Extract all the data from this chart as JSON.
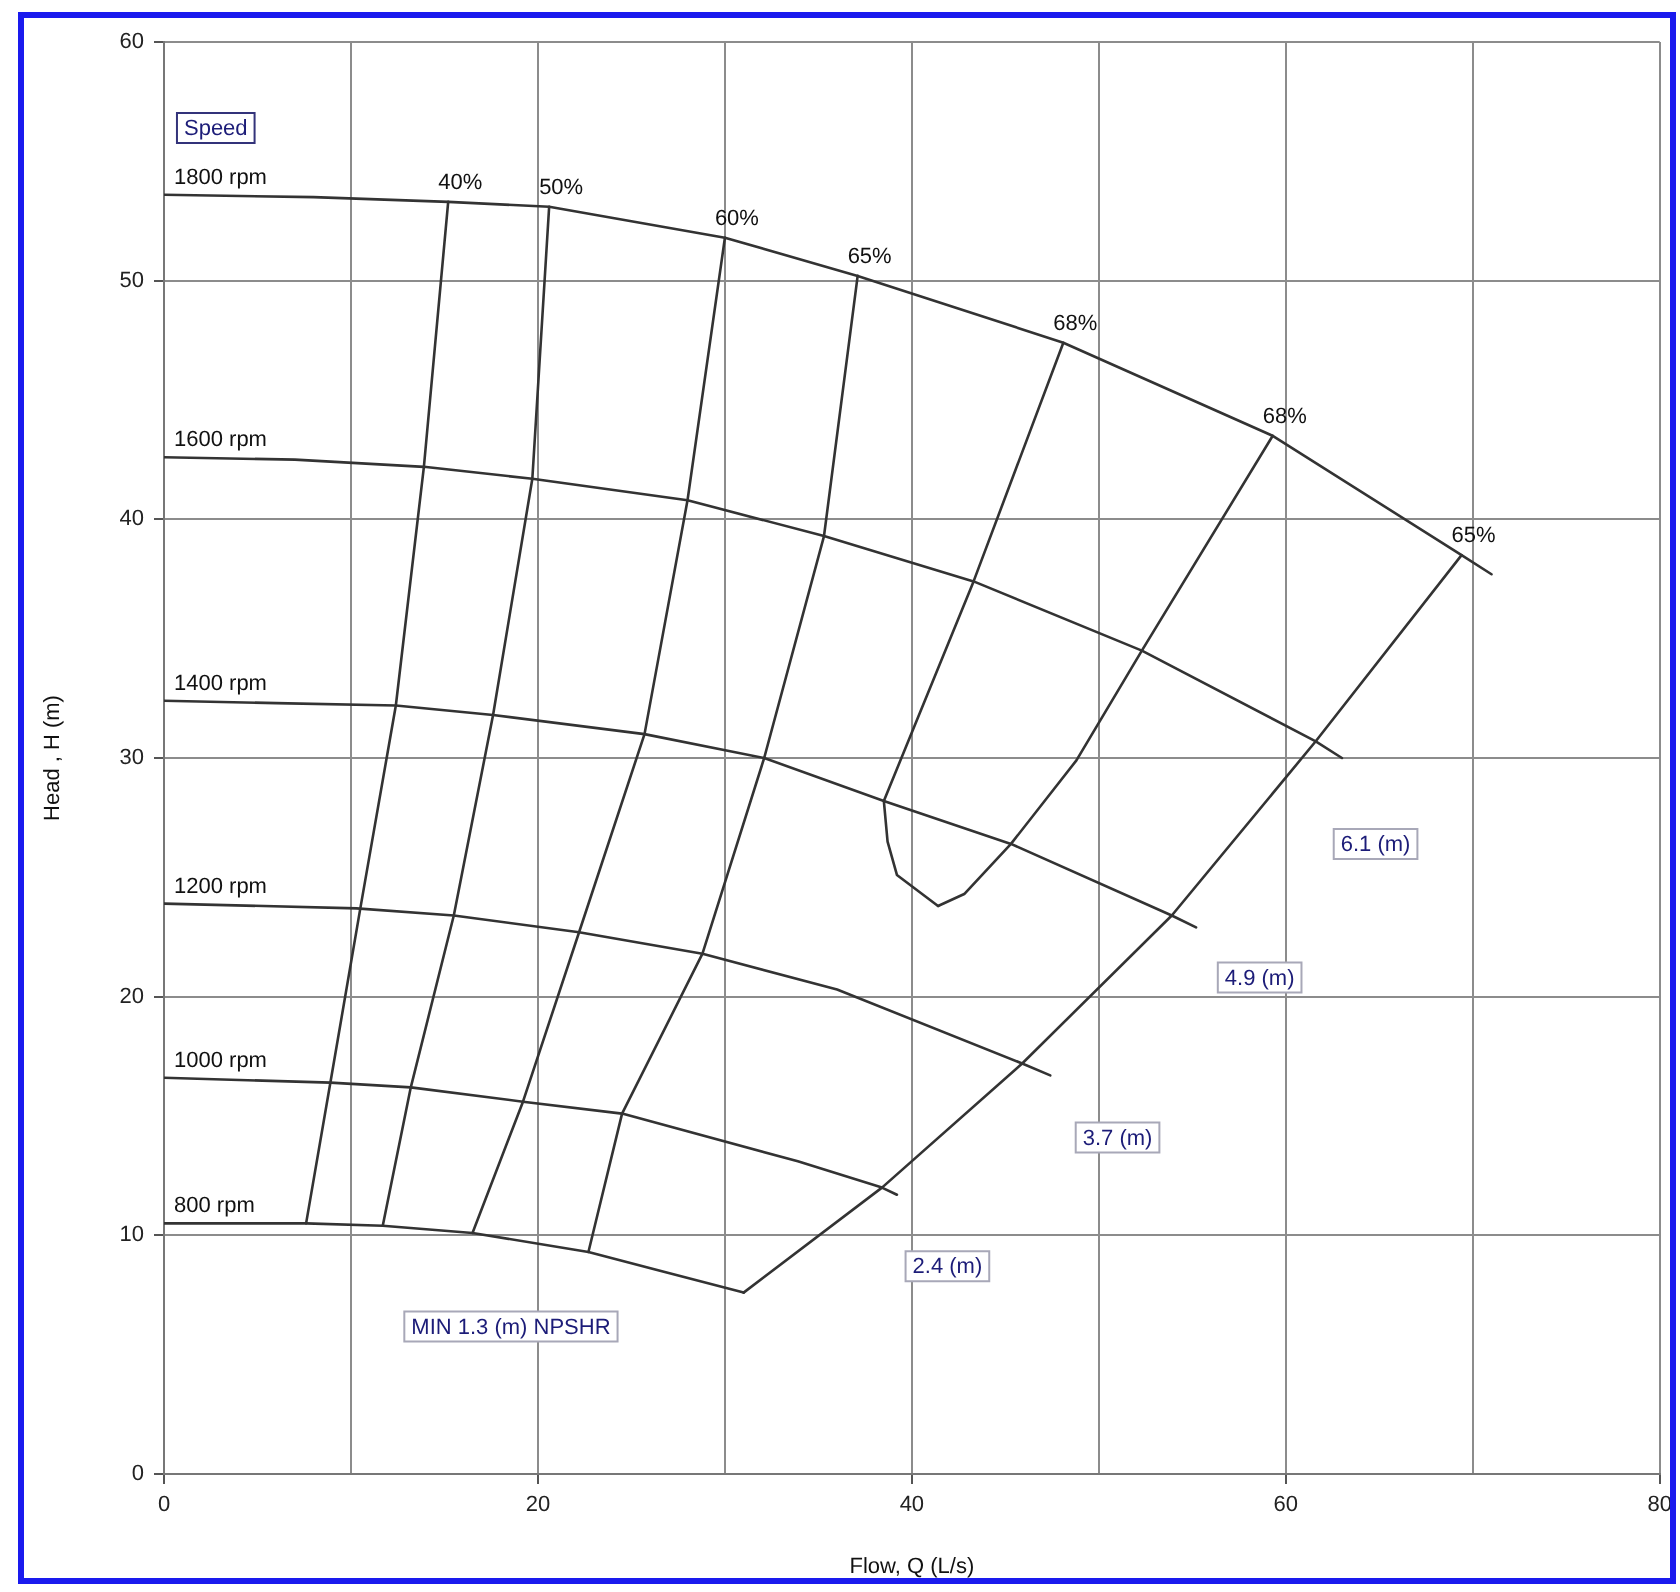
{
  "chart_data": {
    "type": "line",
    "xlabel": "Flow, Q (L/s)",
    "ylabel": "Head , H (m)",
    "xlim": [
      0,
      80
    ],
    "xticks": [
      0,
      {
        "value": 10,
        "label": null
      },
      20,
      {
        "value": 30,
        "label": null
      },
      40,
      {
        "value": 50,
        "label": null
      },
      60,
      {
        "value": 70,
        "label": null
      },
      80
    ],
    "ylim": [
      0,
      60
    ],
    "yticks": [
      0,
      10,
      20,
      30,
      40,
      50,
      60
    ],
    "grid": true,
    "legend": false,
    "marker": "none",
    "series": [
      {
        "name": "1800 rpm",
        "color": "#333333",
        "x": [
          0,
          8,
          15.2,
          20.6,
          30.0,
          37.1,
          48.1,
          59.3,
          69.4,
          71.0
        ],
        "values": [
          53.6,
          53.5,
          53.3,
          53.1,
          51.8,
          50.2,
          47.4,
          43.5,
          38.5,
          37.7
        ]
      },
      {
        "name": "1600 rpm",
        "color": "#333333",
        "x": [
          0,
          7,
          13.9,
          19.7,
          28.0,
          35.3,
          43.3,
          52.3,
          61.6,
          63.0
        ],
        "values": [
          42.6,
          42.5,
          42.2,
          41.7,
          40.8,
          39.3,
          37.4,
          34.5,
          30.7,
          30.0
        ]
      },
      {
        "name": "1400 rpm",
        "color": "#333333",
        "x": [
          0,
          6,
          12.4,
          17.6,
          25.7,
          32.1,
          38.5,
          45.3,
          53.9,
          55.2
        ],
        "values": [
          32.4,
          32.3,
          32.2,
          31.8,
          31.0,
          30.0,
          28.2,
          26.4,
          23.4,
          22.9
        ]
      },
      {
        "name": "1200 rpm",
        "color": "#333333",
        "x": [
          0,
          10.3,
          15.5,
          22.2,
          28.8,
          36.0,
          45.9,
          47.4
        ],
        "values": [
          23.9,
          23.7,
          23.4,
          22.7,
          21.8,
          20.3,
          17.2,
          16.7
        ]
      },
      {
        "name": "1000 rpm",
        "color": "#333333",
        "x": [
          0,
          8.9,
          13.2,
          19.2,
          24.5,
          33.9,
          38.4,
          39.2
        ],
        "values": [
          16.6,
          16.4,
          16.2,
          15.6,
          15.1,
          13.1,
          12.0,
          11.7
        ]
      },
      {
        "name": "800 rpm",
        "color": "#333333",
        "x": [
          0,
          7.6,
          11.7,
          16.5,
          22.7,
          31.0
        ],
        "values": [
          10.5,
          10.5,
          10.4,
          10.1,
          9.3,
          7.6
        ]
      },
      {
        "name": "40%",
        "color": "#333333",
        "x": [
          15.2,
          13.9,
          12.4,
          10.5,
          8.9,
          7.6
        ],
        "values": [
          53.3,
          42.2,
          32.2,
          23.7,
          16.4,
          10.5
        ]
      },
      {
        "name": "50%",
        "color": "#333333",
        "x": [
          20.6,
          19.7,
          17.6,
          15.5,
          13.2,
          11.7
        ],
        "values": [
          53.1,
          41.7,
          31.8,
          23.4,
          16.2,
          10.4
        ]
      },
      {
        "name": "60%",
        "color": "#333333",
        "x": [
          30.0,
          28.0,
          25.7,
          22.2,
          19.2,
          16.5
        ],
        "values": [
          51.8,
          40.8,
          31.0,
          22.7,
          15.6,
          10.1
        ]
      },
      {
        "name": "65%",
        "color": "#333333",
        "x": [
          37.1,
          35.3,
          32.1,
          28.8,
          24.5,
          22.7
        ],
        "values": [
          50.2,
          39.3,
          30.0,
          21.8,
          15.1,
          9.3
        ]
      },
      {
        "name": "68%",
        "color": "#333333",
        "x": [
          48.1,
          43.3,
          38.5,
          38.7,
          39.2,
          41.4
        ],
        "values": [
          47.4,
          37.4,
          28.2,
          26.5,
          25.1,
          23.8
        ]
      },
      {
        "name": "68%",
        "color": "#333333",
        "x": [
          59.3,
          52.3,
          48.8,
          45.3,
          42.8,
          41.4
        ],
        "values": [
          43.5,
          34.5,
          29.9,
          26.4,
          24.3,
          23.8
        ]
      },
      {
        "name": "65%",
        "color": "#333333",
        "x": [
          69.4,
          61.6,
          53.9,
          45.9,
          38.4,
          31.0
        ],
        "values": [
          38.5,
          30.7,
          23.4,
          17.2,
          12.0,
          7.6
        ]
      }
    ],
    "annotations": [
      "Speed",
      "MIN 1.3 (m) NPSHR",
      {
        "text": "6.1 (m)",
        "x": 64.8,
        "y": 26.4
      },
      {
        "text": "4.9 (m)",
        "x": 58.6,
        "y": 20.8
      },
      {
        "text": "3.7 (m)",
        "x": 51.0,
        "y": 14.1
      },
      {
        "text": "2.4 (m)",
        "x": 41.9,
        "y": 8.7
      }
    ]
  }
}
